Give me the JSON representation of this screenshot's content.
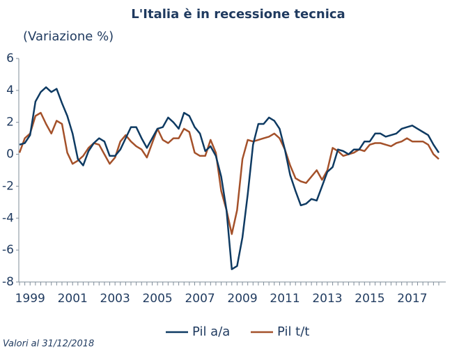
{
  "chart_data": {
    "type": "line",
    "title": "L'Italia è in recessione tecnica",
    "subtitle": "(Variazione %)",
    "note": "Valori al 31/12/2018",
    "categories": [
      null,
      null,
      "1999",
      null,
      null,
      null,
      null,
      null,
      null,
      null,
      "2001",
      null,
      null,
      null,
      null,
      null,
      null,
      null,
      "2003",
      null,
      null,
      null,
      null,
      null,
      null,
      null,
      "2005",
      null,
      null,
      null,
      null,
      null,
      null,
      null,
      "2007",
      null,
      null,
      null,
      null,
      null,
      null,
      null,
      "2009",
      null,
      null,
      null,
      null,
      null,
      null,
      null,
      "2011",
      null,
      null,
      null,
      null,
      null,
      null,
      null,
      "2013",
      null,
      null,
      null,
      null,
      null,
      null,
      null,
      "2015",
      null,
      null,
      null,
      null,
      null,
      null,
      null,
      "2017",
      null,
      null,
      null,
      null,
      null
    ],
    "series": [
      {
        "name": "Pil a/a",
        "color": "#0e3a62",
        "values": [
          0.6,
          0.7,
          1.2,
          3.3,
          3.9,
          4.2,
          3.9,
          4.1,
          3.2,
          2.4,
          1.3,
          -0.3,
          -0.7,
          0.2,
          0.7,
          1.0,
          0.8,
          -0.1,
          -0.1,
          0.3,
          1.0,
          1.7,
          1.7,
          1.0,
          0.4,
          1.0,
          1.6,
          1.7,
          2.3,
          2.0,
          1.6,
          2.6,
          2.4,
          1.7,
          1.3,
          0.2,
          0.5,
          -0.1,
          -1.4,
          -3.5,
          -7.2,
          -7.0,
          -5.2,
          -2.5,
          0.6,
          1.9,
          1.9,
          2.3,
          2.1,
          1.6,
          0.3,
          -1.3,
          -2.3,
          -3.2,
          -3.1,
          -2.8,
          -2.9,
          -2.0,
          -1.1,
          -0.8,
          0.3,
          0.2,
          0.0,
          0.3,
          0.3,
          0.8,
          0.8,
          1.3,
          1.3,
          1.1,
          1.2,
          1.3,
          1.6,
          1.7,
          1.8,
          1.6,
          1.4,
          1.2,
          0.6,
          0.1
        ]
      },
      {
        "name": "Pil t/t",
        "color": "#a4512a",
        "values": [
          0.1,
          1.0,
          1.3,
          2.4,
          2.6,
          1.9,
          1.3,
          2.1,
          1.9,
          0.1,
          -0.6,
          -0.4,
          -0.1,
          0.4,
          0.7,
          0.6,
          0.0,
          -0.6,
          -0.2,
          0.8,
          1.2,
          0.8,
          0.5,
          0.3,
          -0.2,
          0.7,
          1.6,
          0.9,
          0.7,
          1.0,
          1.0,
          1.6,
          1.4,
          0.1,
          -0.1,
          -0.1,
          0.9,
          0.1,
          -2.3,
          -3.5,
          -5.0,
          -3.5,
          -0.3,
          0.9,
          0.8,
          0.9,
          1.0,
          1.1,
          1.3,
          1.0,
          0.3,
          -0.7,
          -1.5,
          -1.7,
          -1.8,
          -1.4,
          -1.0,
          -1.6,
          -1.0,
          0.4,
          0.2,
          -0.1,
          0.0,
          0.1,
          0.3,
          0.2,
          0.6,
          0.7,
          0.7,
          0.6,
          0.5,
          0.7,
          0.8,
          1.0,
          0.8,
          0.8,
          0.8,
          0.6,
          0.0,
          -0.3
        ]
      }
    ],
    "ylim": [
      -8,
      6
    ],
    "yticks": [
      -8,
      -6,
      -4,
      -2,
      0,
      2,
      4,
      6
    ]
  }
}
